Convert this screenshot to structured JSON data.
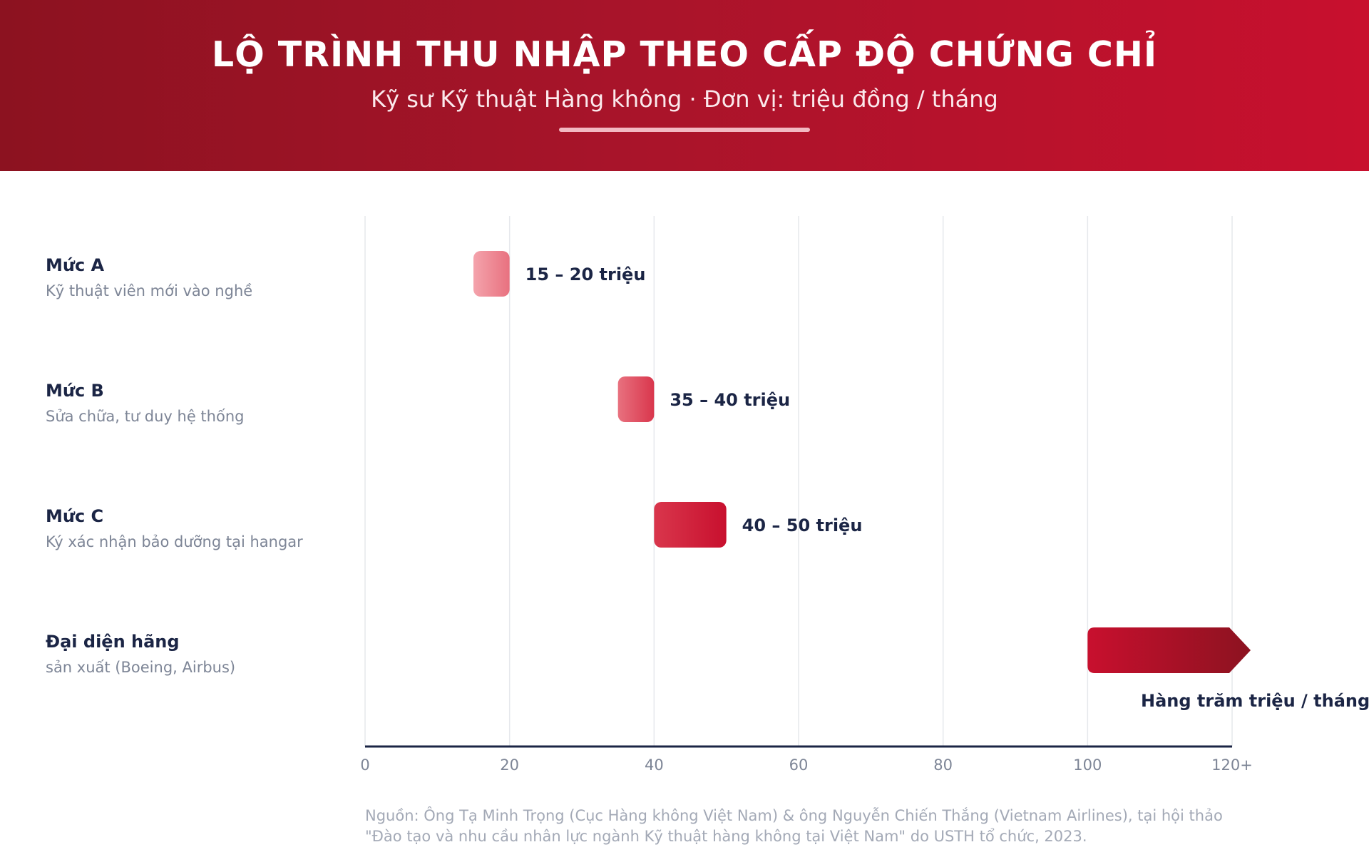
{
  "header": {
    "title": "LỘ TRÌNH THU NHẬP THEO CẤP ĐỘ CHỨNG CHỈ",
    "subtitle": "Kỹ sư Kỹ thuật Hàng không · Đơn vị: triệu đồng / tháng"
  },
  "rows": [
    {
      "name": "Mức A",
      "desc": "Kỹ thuật viên mới vào nghề"
    },
    {
      "name": "Mức B",
      "desc": "Sửa chữa, tư duy hệ thống"
    },
    {
      "name": "Mức C",
      "desc": "Ký xác nhận bảo dưỡng tại hangar"
    },
    {
      "name": "Đại diện hãng",
      "desc": "sản xuất (Boeing, Airbus)"
    }
  ],
  "chart_data": {
    "type": "bar",
    "orientation": "horizontal-range",
    "categories": [
      "Mức A",
      "Mức B",
      "Mức C",
      "Đại diện hãng"
    ],
    "ranges": [
      [
        15,
        20
      ],
      [
        35,
        40
      ],
      [
        40,
        50
      ],
      [
        100,
        120
      ]
    ],
    "value_labels": [
      "15 – 20 triệu",
      "35 – 40 triệu",
      "40 – 50 triệu",
      "Hàng trăm triệu / tháng"
    ],
    "open_ended_last": true,
    "xlim": [
      0,
      120
    ],
    "xticks": [
      "0",
      "20",
      "40",
      "60",
      "80",
      "100",
      "120+"
    ],
    "grid": true,
    "colors": {
      "a": [
        "#f4a3ac",
        "#e8717f"
      ],
      "b": [
        "#e8717f",
        "#d9364c"
      ],
      "c": [
        "#d9364c",
        "#c8102e"
      ],
      "d": [
        "#c8102e",
        "#8c1220"
      ],
      "label": "#1b2545",
      "tick": "#7d8596",
      "grid": "#e6e8ec",
      "axis": "#1b2545"
    }
  },
  "source": {
    "line1": "Nguồn: Ông Tạ Minh Trọng (Cục Hàng không Việt Nam) & ông Nguyễn Chiến Thắng (Vietnam Airlines), tại hội thảo",
    "line2": "\"Đào tạo và nhu cầu nhân lực ngành Kỹ thuật hàng không tại Việt Nam\" do USTH tổ chức, 2023."
  }
}
